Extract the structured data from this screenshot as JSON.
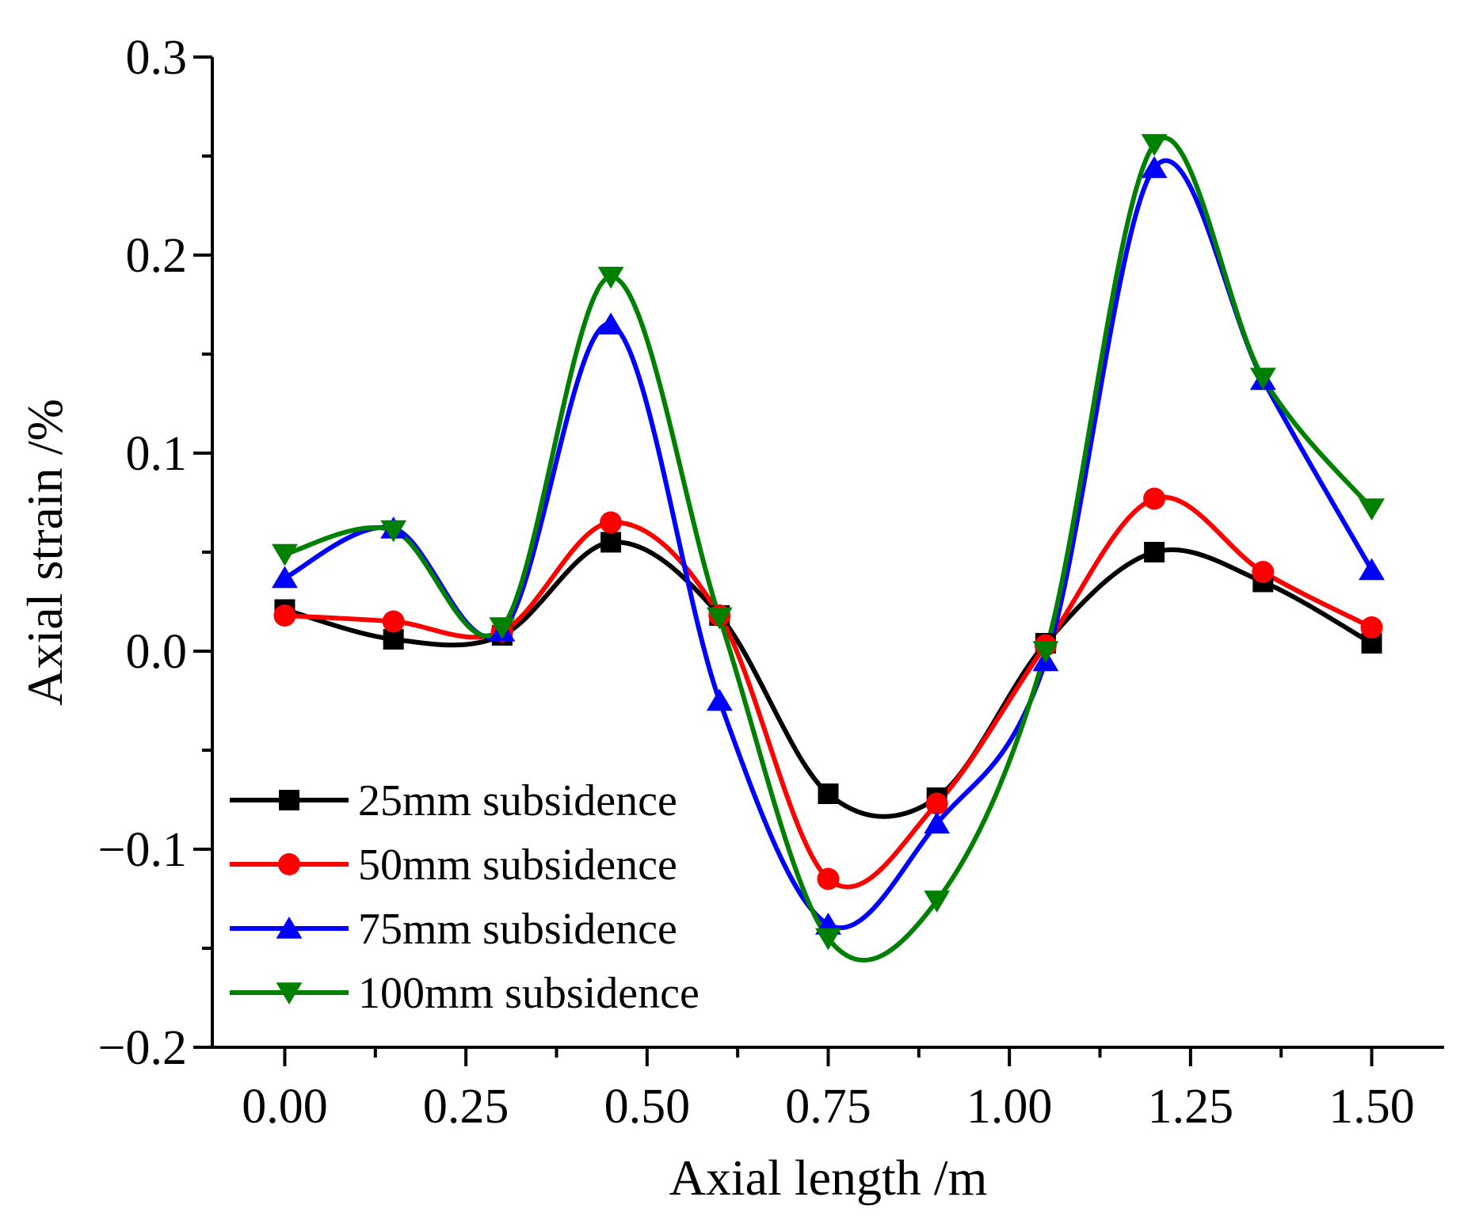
{
  "chart_data": {
    "type": "line",
    "title": "",
    "xlabel": "Axial length /m",
    "ylabel": "Axial strain /%",
    "xlim": [
      -0.1,
      1.6
    ],
    "ylim": [
      -0.2,
      0.3
    ],
    "x_ticks": [
      0.0,
      0.25,
      0.5,
      0.75,
      1.0,
      1.25,
      1.5
    ],
    "x_tick_labels": [
      "0.00",
      "0.25",
      "0.50",
      "0.75",
      "1.00",
      "1.25",
      "1.50"
    ],
    "y_ticks": [
      -0.2,
      -0.1,
      0.0,
      0.1,
      0.2,
      0.3
    ],
    "y_tick_labels": [
      "−0.2",
      "−0.1",
      "0.0",
      "0.1",
      "0.2",
      "0.3"
    ],
    "grid": false,
    "smooth": true,
    "legend_position": "bottom-left",
    "x": [
      0.0,
      0.15,
      0.3,
      0.45,
      0.6,
      0.75,
      0.9,
      1.05,
      1.2,
      1.35,
      1.5
    ],
    "series": [
      {
        "name": "25mm subsidence",
        "color": "#000000",
        "marker": "square",
        "values": [
          0.021,
          0.006,
          0.008,
          0.055,
          0.018,
          -0.072,
          -0.074,
          0.004,
          0.05,
          0.035,
          0.004
        ]
      },
      {
        "name": "50mm subsidence",
        "color": "#ff0000",
        "marker": "circle",
        "values": [
          0.018,
          0.015,
          0.01,
          0.065,
          0.018,
          -0.115,
          -0.077,
          0.003,
          0.077,
          0.04,
          0.012
        ]
      },
      {
        "name": "75mm subsidence",
        "color": "#0000ff",
        "marker": "triangle-up",
        "values": [
          0.037,
          0.062,
          0.01,
          0.165,
          -0.025,
          -0.138,
          -0.087,
          -0.005,
          0.244,
          0.137,
          0.041
        ]
      },
      {
        "name": "100mm subsidence",
        "color": "#008000",
        "marker": "triangle-down",
        "values": [
          0.049,
          0.061,
          0.012,
          0.189,
          0.017,
          -0.145,
          -0.126,
          0.0,
          0.256,
          0.138,
          0.072
        ]
      }
    ]
  }
}
